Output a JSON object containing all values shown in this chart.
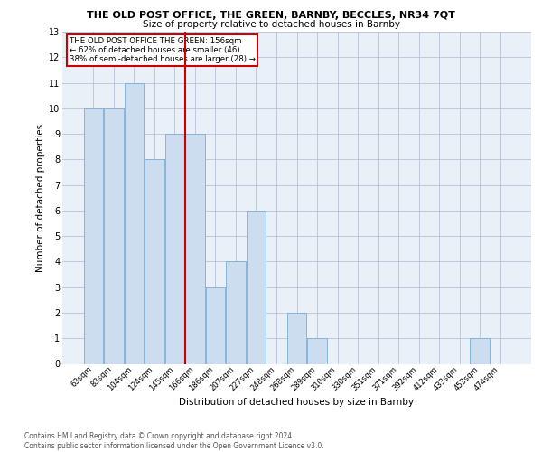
{
  "title1": "THE OLD POST OFFICE, THE GREEN, BARNBY, BECCLES, NR34 7QT",
  "title2": "Size of property relative to detached houses in Barnby",
  "xlabel": "Distribution of detached houses by size in Barnby",
  "ylabel": "Number of detached properties",
  "categories": [
    "63sqm",
    "83sqm",
    "104sqm",
    "124sqm",
    "145sqm",
    "166sqm",
    "186sqm",
    "207sqm",
    "227sqm",
    "248sqm",
    "268sqm",
    "289sqm",
    "310sqm",
    "330sqm",
    "351sqm",
    "371sqm",
    "392sqm",
    "412sqm",
    "433sqm",
    "453sqm",
    "474sqm"
  ],
  "values": [
    10,
    10,
    11,
    8,
    9,
    9,
    3,
    4,
    6,
    0,
    2,
    1,
    0,
    0,
    0,
    0,
    0,
    0,
    0,
    1,
    0
  ],
  "bar_color": "#ccddf0",
  "bar_edge_color": "#7aadd4",
  "reference_line_x": 4.5,
  "reference_line_label": "THE OLD POST OFFICE THE GREEN: 156sqm",
  "annotation_line1": "← 62% of detached houses are smaller (46)",
  "annotation_line2": "38% of semi-detached houses are larger (28) →",
  "annotation_box_edge": "#cc0000",
  "vline_color": "#cc0000",
  "ylim": [
    0,
    13
  ],
  "yticks": [
    0,
    1,
    2,
    3,
    4,
    5,
    6,
    7,
    8,
    9,
    10,
    11,
    12,
    13
  ],
  "grid_color": "#b0b8d0",
  "background_color": "#eaf0f8",
  "footer": "Contains HM Land Registry data © Crown copyright and database right 2024.\nContains public sector information licensed under the Open Government Licence v3.0."
}
